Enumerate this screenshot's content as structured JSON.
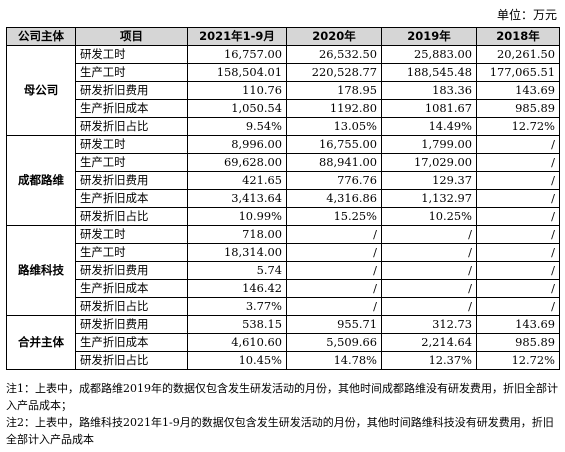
{
  "unit_label": "单位：万元",
  "headers": [
    "公司主体",
    "项目",
    "2021年1-9月",
    "2020年",
    "2019年",
    "2018年"
  ],
  "groups": [
    {
      "entity": "母公司",
      "rows": [
        {
          "item": "研发工时",
          "values": [
            "16,757.00",
            "26,532.50",
            "25,883.00",
            "20,261.50"
          ]
        },
        {
          "item": "生产工时",
          "values": [
            "158,504.01",
            "220,528.77",
            "188,545.48",
            "177,065.51"
          ]
        },
        {
          "item": "研发折旧费用",
          "values": [
            "110.76",
            "178.95",
            "183.36",
            "143.69"
          ]
        },
        {
          "item": "生产折旧成本",
          "values": [
            "1,050.54",
            "1192.80",
            "1081.67",
            "985.89"
          ]
        },
        {
          "item": "研发折旧占比",
          "values": [
            "9.54%",
            "13.05%",
            "14.49%",
            "12.72%"
          ]
        }
      ]
    },
    {
      "entity": "成都路维",
      "rows": [
        {
          "item": "研发工时",
          "values": [
            "8,996.00",
            "16,755.00",
            "1,799.00",
            "/"
          ]
        },
        {
          "item": "生产工时",
          "values": [
            "69,628.00",
            "88,941.00",
            "17,029.00",
            "/"
          ]
        },
        {
          "item": "研发折旧费用",
          "values": [
            "421.65",
            "776.76",
            "129.37",
            "/"
          ]
        },
        {
          "item": "生产折旧成本",
          "values": [
            "3,413.64",
            "4,316.86",
            "1,132.97",
            "/"
          ]
        },
        {
          "item": "研发折旧占比",
          "values": [
            "10.99%",
            "15.25%",
            "10.25%",
            "/"
          ]
        }
      ]
    },
    {
      "entity": "路维科技",
      "rows": [
        {
          "item": "研发工时",
          "values": [
            "718.00",
            "/",
            "/",
            "/"
          ]
        },
        {
          "item": "生产工时",
          "values": [
            "18,314.00",
            "/",
            "/",
            "/"
          ]
        },
        {
          "item": "研发折旧费用",
          "values": [
            "5.74",
            "/",
            "/",
            "/"
          ]
        },
        {
          "item": "生产折旧成本",
          "values": [
            "146.42",
            "/",
            "/",
            "/"
          ]
        },
        {
          "item": "研发折旧占比",
          "values": [
            "3.77%",
            "/",
            "/",
            "/"
          ]
        }
      ]
    },
    {
      "entity": "合并主体",
      "rows": [
        {
          "item": "研发折旧费用",
          "values": [
            "538.15",
            "955.71",
            "312.73",
            "143.69"
          ]
        },
        {
          "item": "生产折旧成本",
          "values": [
            "4,610.60",
            "5,509.66",
            "2,214.64",
            "985.89"
          ]
        },
        {
          "item": "研发折旧占比",
          "values": [
            "10.45%",
            "14.78%",
            "12.37%",
            "12.72%"
          ]
        }
      ]
    }
  ],
  "notes": [
    "注1：上表中，成都路维2019年的数据仅包含发生研发活动的月份，其他时间成都路维没有研发费用，折旧全部计入产品成本；",
    "注2：上表中，路维科技2021年1-9月的数据仅包含发生研发活动的月份，其他时间路维科技没有研发费用，折旧全部计入产品成本"
  ]
}
